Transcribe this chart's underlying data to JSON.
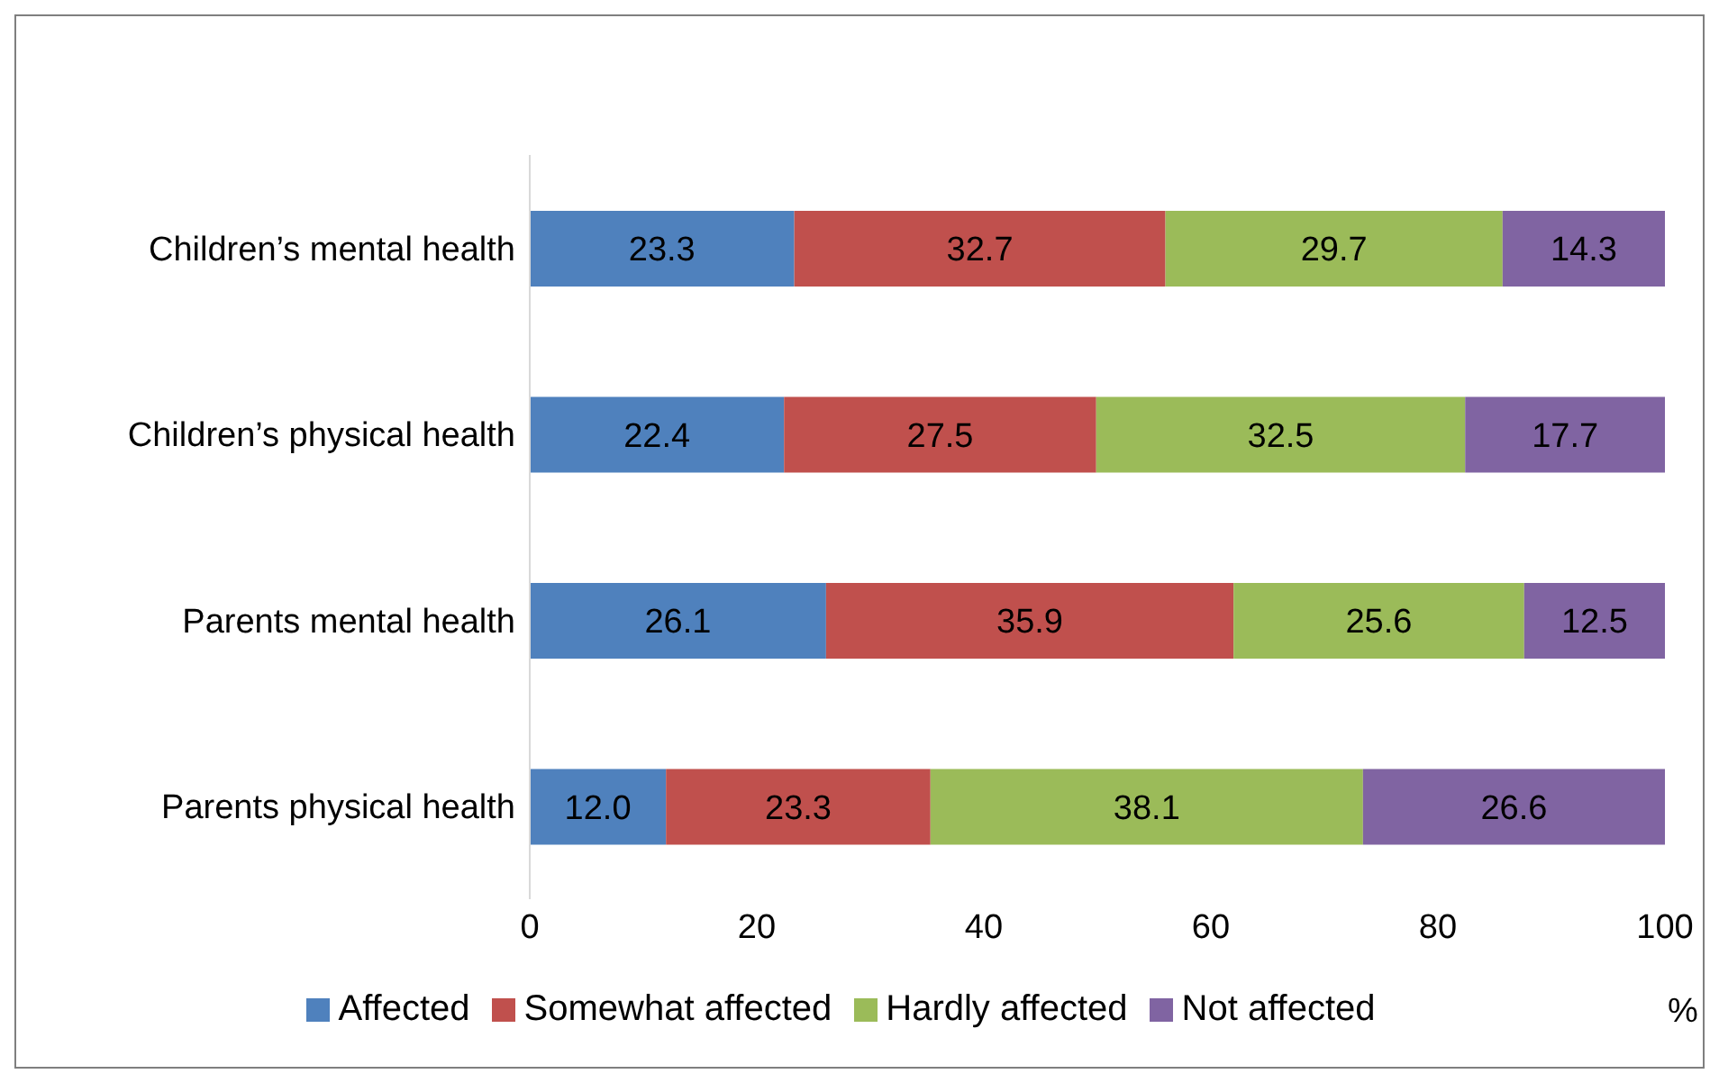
{
  "chart_data": {
    "type": "bar",
    "orientation": "horizontal",
    "stacked": true,
    "xlabel": "%",
    "categories": [
      "Children’s mental health",
      "Children’s physical health",
      "Parents mental health",
      "Parents physical health"
    ],
    "series": [
      {
        "name": "Affected",
        "color": "#4f81bd",
        "values": [
          23.3,
          22.4,
          26.1,
          12.0
        ],
        "value_labels": [
          "23.3",
          "22.4",
          "26.1",
          "12.0"
        ]
      },
      {
        "name": "Somewhat affected",
        "color": "#c0504d",
        "values": [
          32.7,
          27.5,
          35.9,
          23.3
        ],
        "value_labels": [
          "32.7",
          "27.5",
          "35.9",
          "23.3"
        ]
      },
      {
        "name": "Hardly affected",
        "color": "#9bbb59",
        "values": [
          29.7,
          32.5,
          25.6,
          38.1
        ],
        "value_labels": [
          "29.7",
          "32.5",
          "25.6",
          "38.1"
        ]
      },
      {
        "name": "Not affected",
        "color": "#8064a2",
        "values": [
          14.3,
          17.7,
          12.5,
          26.6
        ],
        "value_labels": [
          "14.3",
          "17.7",
          "12.5",
          "26.6"
        ]
      }
    ],
    "xlim": [
      0,
      100
    ],
    "xticks": [
      0,
      20,
      40,
      60,
      80,
      100
    ],
    "grid": false,
    "legend": "bottom"
  }
}
